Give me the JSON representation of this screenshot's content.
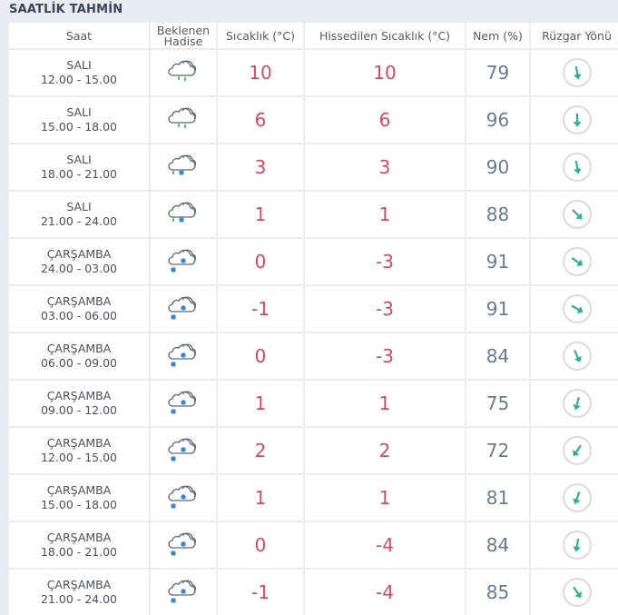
{
  "title": "SAATLİK TAHMİN",
  "headers": {
    "time": "Saat",
    "event": "Beklenen\nHadise",
    "temp": "Sıcaklık (°C)",
    "feels": "Hissedilen Sıcaklık (°C)",
    "humidity": "Nem (%)",
    "wind": "Rüzgar Yönü"
  },
  "colors": {
    "temp": "#d24a63",
    "humidity": "#6d7a8e",
    "wind_arrow": "#2bb48a",
    "rain": "#5cc05a",
    "snow": "#2a7fd4"
  },
  "rows": [
    {
      "day": "SALI",
      "range": "12.00 - 15.00",
      "icon": "rain-cloud-icon",
      "temp": "10",
      "feels": "10",
      "humidity": "79",
      "wind_deg": -10
    },
    {
      "day": "SALI",
      "range": "15.00 - 18.00",
      "icon": "rain-cloud-icon",
      "temp": "6",
      "feels": "6",
      "humidity": "96",
      "wind_deg": 0
    },
    {
      "day": "SALI",
      "range": "18.00 - 21.00",
      "icon": "sleet-cloud-icon",
      "temp": "3",
      "feels": "3",
      "humidity": "90",
      "wind_deg": -10
    },
    {
      "day": "SALI",
      "range": "21.00 - 24.00",
      "icon": "sleet-cloud-icon",
      "temp": "1",
      "feels": "1",
      "humidity": "88",
      "wind_deg": -45
    },
    {
      "day": "ÇARŞAMBA",
      "range": "24.00 - 03.00",
      "icon": "snow-cloud-icon",
      "temp": "0",
      "feels": "-3",
      "humidity": "91",
      "wind_deg": -55
    },
    {
      "day": "ÇARŞAMBA",
      "range": "03.00 - 06.00",
      "icon": "snow-cloud-icon",
      "temp": "-1",
      "feels": "-3",
      "humidity": "91",
      "wind_deg": -60
    },
    {
      "day": "ÇARŞAMBA",
      "range": "06.00 - 09.00",
      "icon": "snow-cloud-icon",
      "temp": "0",
      "feels": "-3",
      "humidity": "84",
      "wind_deg": -25
    },
    {
      "day": "ÇARŞAMBA",
      "range": "09.00 - 12.00",
      "icon": "snow-cloud-icon",
      "temp": "1",
      "feels": "1",
      "humidity": "75",
      "wind_deg": 15
    },
    {
      "day": "ÇARŞAMBA",
      "range": "12.00 - 15.00",
      "icon": "snow-cloud-icon",
      "temp": "2",
      "feels": "2",
      "humidity": "72",
      "wind_deg": 35
    },
    {
      "day": "ÇARŞAMBA",
      "range": "15.00 - 18.00",
      "icon": "snow-cloud-icon",
      "temp": "1",
      "feels": "1",
      "humidity": "81",
      "wind_deg": 20
    },
    {
      "day": "ÇARŞAMBA",
      "range": "18.00 - 21.00",
      "icon": "snow-cloud-icon",
      "temp": "0",
      "feels": "-4",
      "humidity": "84",
      "wind_deg": 10
    },
    {
      "day": "ÇARŞAMBA",
      "range": "21.00 - 24.00",
      "icon": "snow-cloud-icon",
      "temp": "-1",
      "feels": "-4",
      "humidity": "85",
      "wind_deg": -35
    }
  ]
}
